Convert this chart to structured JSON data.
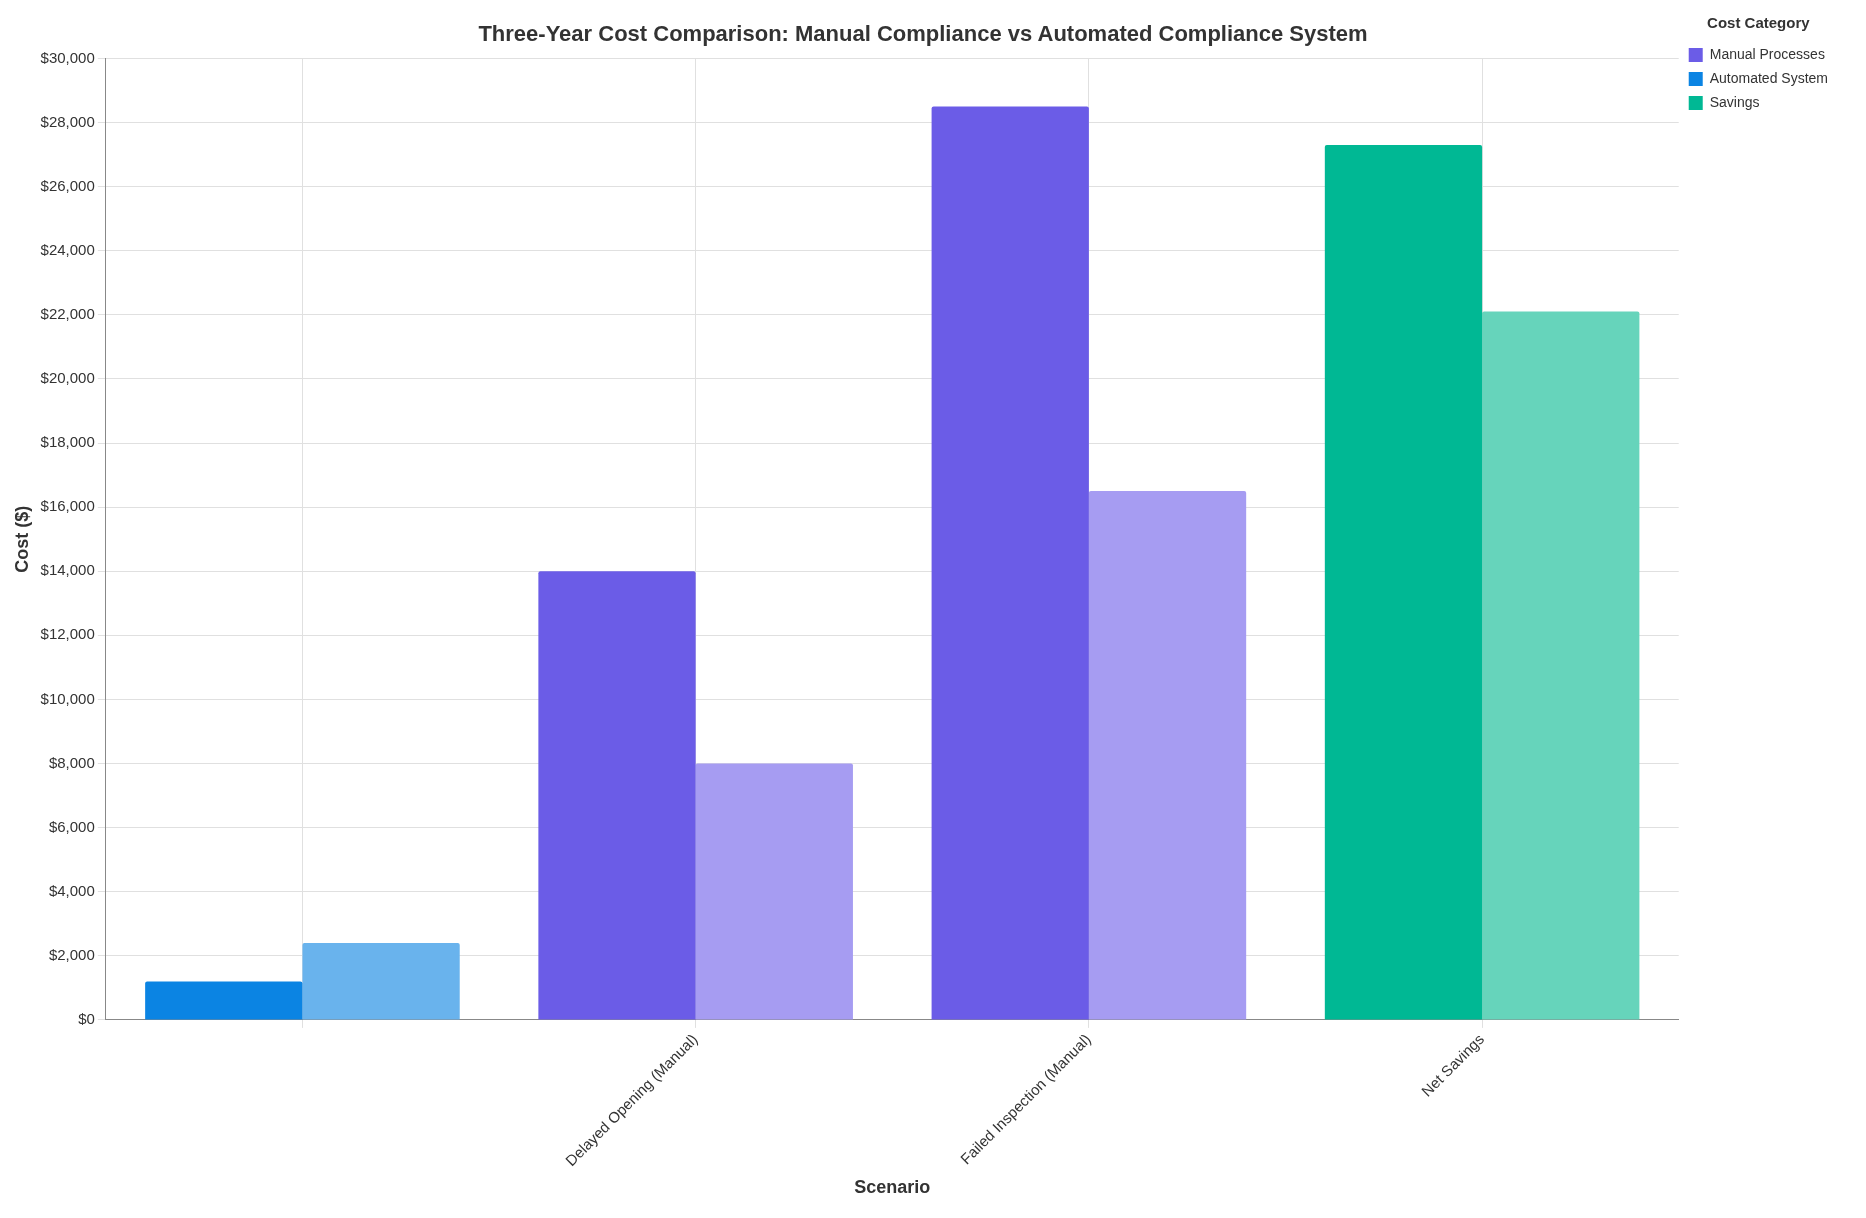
{
  "chart_data": {
    "type": "bar",
    "title": "Three-Year Cost Comparison: Manual Compliance vs Automated Compliance System",
    "xlabel": "Scenario",
    "ylabel": "Cost ($)",
    "legend_title": "Cost Category",
    "categories": [
      null,
      "Delayed Opening (Manual)",
      "Failed Inspection (Manual)",
      "Net Savings"
    ],
    "series": [
      {
        "name": "Manual Processes",
        "color": "#6b5ce7",
        "values": [
          null,
          14000,
          28500,
          null
        ]
      },
      {
        "name": "Automated System",
        "color": "#0b84e3",
        "values": [
          1200,
          null,
          null,
          null
        ]
      },
      {
        "name": "Savings",
        "color": "#00b894",
        "values": [
          null,
          null,
          null,
          27300
        ]
      },
      {
        "colors": [
          "#69b3ed",
          "#a69cf2",
          "#a69cf2",
          "#66d4bb"
        ],
        "values": [
          2400,
          8000,
          16500,
          22100
        ]
      }
    ],
    "ylim": [
      0,
      30000
    ],
    "yticks": [
      {
        "value": 0,
        "label": "$0"
      },
      {
        "value": 2000,
        "label": "$2,000"
      },
      {
        "value": 4000,
        "label": "$4,000"
      },
      {
        "value": 6000,
        "label": "$6,000"
      },
      {
        "value": 8000,
        "label": "$8,000"
      },
      {
        "value": 10000,
        "label": "$10,000"
      },
      {
        "value": 12000,
        "label": "$12,000"
      },
      {
        "value": 14000,
        "label": "$14,000"
      },
      {
        "value": 16000,
        "label": "$16,000"
      },
      {
        "value": 18000,
        "label": "$18,000"
      },
      {
        "value": 20000,
        "label": "$20,000"
      },
      {
        "value": 22000,
        "label": "$22,000"
      },
      {
        "value": 24000,
        "label": "$24,000"
      },
      {
        "value": 26000,
        "label": "$26,000"
      },
      {
        "value": 28000,
        "label": "$28,000"
      },
      {
        "value": 30000,
        "label": "$30,000"
      }
    ],
    "grid": true,
    "legend": "top right"
  }
}
